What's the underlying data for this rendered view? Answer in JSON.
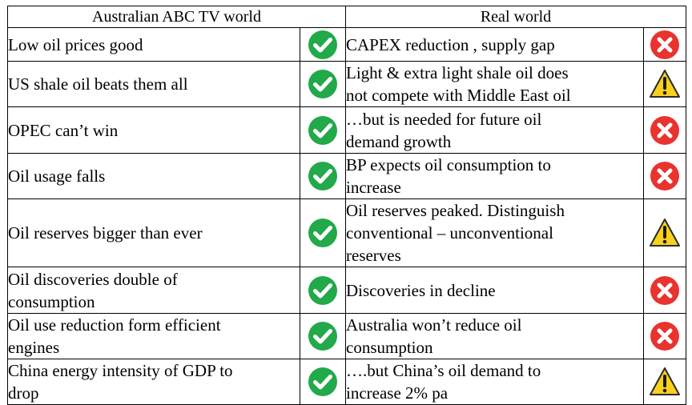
{
  "headers": {
    "left": "Australian ABC TV world",
    "right": "Real world"
  },
  "colors": {
    "check": "#22a94a",
    "cross": "#e8332e",
    "warning": "#f9d11c",
    "border": "#000000"
  },
  "rows": [
    {
      "left_lines": [
        "Low oil prices good"
      ],
      "left_icon": "checkmark-icon",
      "right_lines": [
        "CAPEX reduction , supply gap"
      ],
      "right_icon": "cross-icon"
    },
    {
      "left_lines": [
        "US shale oil beats them all"
      ],
      "left_icon": "checkmark-icon",
      "right_lines": [
        "Light & extra light shale oil does",
        "not compete with Middle East oil"
      ],
      "right_icon": "warning-icon"
    },
    {
      "left_lines": [
        "OPEC can’t win"
      ],
      "left_icon": "checkmark-icon",
      "right_lines": [
        "…but is needed for future oil",
        "demand growth"
      ],
      "right_icon": "cross-icon"
    },
    {
      "left_lines": [
        "Oil usage falls"
      ],
      "left_icon": "checkmark-icon",
      "right_lines": [
        "BP expects oil consumption to",
        "increase"
      ],
      "right_icon": "cross-icon"
    },
    {
      "left_lines": [
        "Oil reserves bigger than ever"
      ],
      "left_icon": "checkmark-icon",
      "right_lines": [
        "Oil reserves peaked. Distinguish",
        "conventional – unconventional",
        "reserves"
      ],
      "right_icon": "warning-icon"
    },
    {
      "left_lines": [
        "Oil discoveries double of",
        "consumption"
      ],
      "left_icon": "checkmark-icon",
      "right_lines": [
        "Discoveries in decline"
      ],
      "right_icon": "cross-icon"
    },
    {
      "left_lines": [
        "Oil use reduction form efficient",
        "engines"
      ],
      "left_icon": "checkmark-icon",
      "right_lines": [
        "Australia won’t reduce oil",
        "consumption"
      ],
      "right_icon": "cross-icon"
    },
    {
      "left_lines": [
        "China energy intensity of GDP to",
        "drop"
      ],
      "left_icon": "checkmark-icon",
      "right_lines": [
        "….but China’s oil demand to",
        "increase 2% pa"
      ],
      "right_icon": "warning-icon"
    }
  ]
}
